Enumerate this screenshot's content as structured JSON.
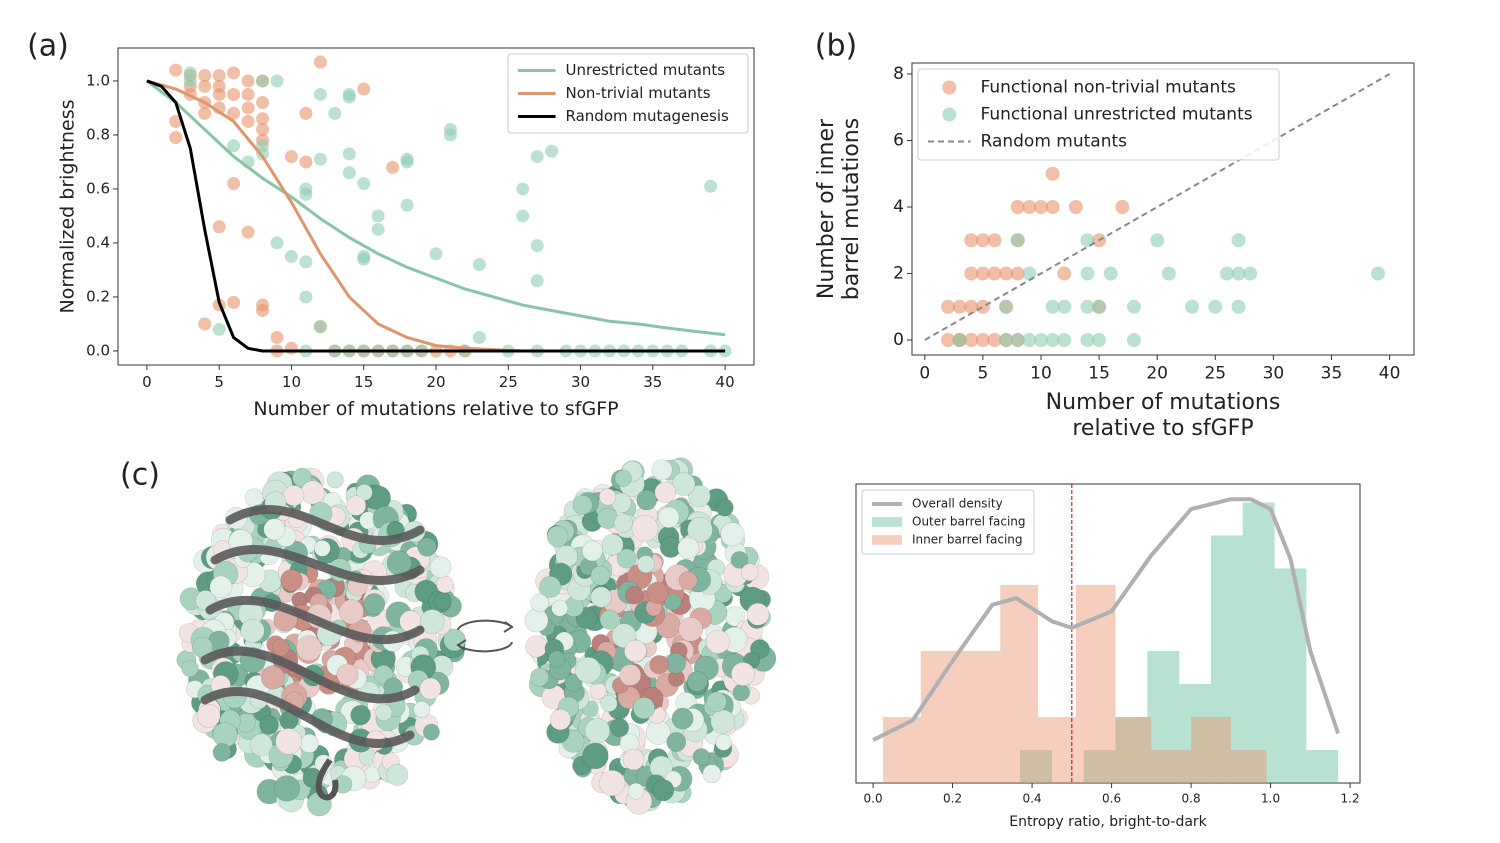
{
  "panel_labels": [
    "(a)",
    "(b)",
    "(c)"
  ],
  "chart_data": [
    {
      "type": "scatter",
      "xlabel": "Number of mutations relative to sfGFP",
      "ylabel": "Normalized brightness",
      "xlim": [
        -2,
        42
      ],
      "ylim": [
        -0.052,
        1.122
      ],
      "xticks": [
        0,
        5,
        10,
        15,
        20,
        25,
        30,
        35,
        40
      ],
      "yticks": [
        {
          "value": 0,
          "label": "0.0"
        },
        0.2,
        0.4,
        0.6,
        0.8,
        {
          "value": 1,
          "label": "1.0"
        }
      ],
      "legend": "upper right",
      "points": [
        {
          "color": "#e8936d",
          "x": [
            2,
            2,
            2,
            3,
            3,
            3,
            4,
            4,
            4,
            4,
            5,
            5,
            5,
            5,
            5,
            4,
            6,
            6,
            6,
            6,
            6,
            5,
            7,
            7,
            7,
            7,
            7,
            8,
            8,
            8,
            8,
            8,
            8,
            8,
            9,
            9,
            10,
            10,
            11,
            11,
            12,
            12,
            13,
            15,
            15,
            17,
            17,
            18,
            19,
            20,
            21,
            22,
            14,
            16
          ],
          "y": [
            1.04,
            0.85,
            0.79,
            1.02,
            0.98,
            0.95,
            1.02,
            0.98,
            0.92,
            0.88,
            1.02,
            0.98,
            0.95,
            0.9,
            0.46,
            0.1,
            1.03,
            0.95,
            0.88,
            0.62,
            0.18,
            0.17,
            1.0,
            0.95,
            0.9,
            0.85,
            0.44,
            1.0,
            0.92,
            0.86,
            0.82,
            0.78,
            0.17,
            0.15,
            0.0,
            0.05,
            0.01,
            0.72,
            0.7,
            0.88,
            1.07,
            0.09,
            0.0,
            0.97,
            0.0,
            0.68,
            0.0,
            0.0,
            0.0,
            0.0,
            0.0,
            0.0,
            0.0,
            0.0
          ]
        },
        {
          "color": "#8fcdb2",
          "x": [
            3,
            3,
            5,
            6,
            7,
            8,
            8,
            8,
            9,
            9,
            10,
            11,
            11,
            11,
            11,
            11,
            12,
            12,
            12,
            13,
            13,
            14,
            14,
            14,
            14,
            14,
            15,
            15,
            15,
            15,
            16,
            16,
            16,
            17,
            18,
            18,
            18,
            18,
            19,
            20,
            21,
            21,
            22,
            23,
            23,
            25,
            26,
            26,
            27,
            27,
            27,
            27,
            28,
            29,
            30,
            31,
            32,
            33,
            34,
            35,
            36,
            37,
            39,
            39,
            40
          ],
          "y": [
            1.03,
            1.0,
            0.08,
            0.76,
            0.7,
            1.0,
            0.76,
            0.73,
            1.0,
            0.4,
            0.35,
            0.33,
            0.6,
            0.58,
            0.2,
            0.0,
            0.95,
            0.71,
            0.09,
            0.88,
            0.0,
            0.95,
            0.94,
            0.73,
            0.66,
            0.0,
            0.62,
            0.35,
            0.34,
            0.0,
            0.5,
            0.45,
            0.0,
            0.0,
            0.71,
            0.7,
            0.54,
            0.0,
            0.0,
            0.36,
            0.82,
            0.8,
            0.0,
            0.32,
            0.05,
            0.0,
            0.6,
            0.5,
            0.72,
            0.39,
            0.26,
            0.0,
            0.74,
            0.0,
            0.0,
            0.0,
            0.0,
            0.0,
            0.0,
            0.0,
            0.0,
            0.0,
            0.61,
            0.0,
            0.0
          ]
        }
      ],
      "series": [
        {
          "name": "Unrestricted mutants",
          "color": "#87c4a8",
          "x": [
            0,
            2,
            4,
            6,
            8,
            10,
            12,
            14,
            16,
            18,
            20,
            22,
            24,
            26,
            28,
            30,
            32,
            34,
            36,
            38,
            40
          ],
          "y": [
            1.0,
            0.92,
            0.82,
            0.72,
            0.64,
            0.57,
            0.49,
            0.42,
            0.36,
            0.31,
            0.27,
            0.23,
            0.2,
            0.17,
            0.15,
            0.13,
            0.11,
            0.1,
            0.085,
            0.072,
            0.06
          ]
        },
        {
          "name": "Non-trivial mutants",
          "color": "#e0956c",
          "x": [
            0,
            2,
            4,
            6,
            8,
            10,
            12,
            14,
            16,
            18,
            20,
            22,
            24,
            26,
            30,
            35,
            40
          ],
          "y": [
            1.0,
            0.97,
            0.92,
            0.85,
            0.72,
            0.55,
            0.36,
            0.2,
            0.1,
            0.05,
            0.02,
            0.01,
            0.005,
            0,
            0,
            0,
            0
          ]
        },
        {
          "name": "Random mutagenesis",
          "color": "#000000",
          "x": [
            0,
            1,
            2,
            3,
            4,
            5,
            6,
            7,
            8,
            10,
            20,
            30,
            40
          ],
          "y": [
            1.0,
            0.98,
            0.92,
            0.75,
            0.45,
            0.18,
            0.05,
            0.01,
            0,
            0,
            0,
            0,
            0
          ]
        }
      ]
    },
    {
      "type": "scatter",
      "xlabel": [
        "Number of mutations",
        "relative to sfGFP"
      ],
      "ylabel": [
        "Number of inner",
        "barrel mutations"
      ],
      "xlim": [
        -1.1,
        42.1
      ],
      "ylim": [
        -0.45,
        8.33
      ],
      "xticks": [
        0,
        5,
        10,
        15,
        20,
        25,
        30,
        35,
        40
      ],
      "yticks": [
        0,
        2,
        4,
        6,
        8
      ],
      "legend": "upper left",
      "points": [
        {
          "name": "Functional non-trivial mutants",
          "color": "#e8936d",
          "x": [
            2,
            2,
            3,
            3,
            4,
            4,
            4,
            5,
            5,
            5,
            5,
            6,
            6,
            6,
            7,
            7,
            8,
            8,
            9,
            8,
            10,
            11,
            11,
            12,
            13,
            15,
            15,
            17,
            7,
            8,
            3,
            4
          ],
          "y": [
            0,
            1,
            1,
            0,
            1,
            2,
            3,
            0,
            1,
            2,
            3,
            0,
            2,
            3,
            2,
            1,
            2,
            4,
            4,
            3,
            4,
            4,
            5,
            2,
            4,
            3,
            1,
            4,
            0,
            0,
            0,
            0
          ]
        },
        {
          "name": "Functional unrestricted mutants",
          "color": "#8fcdb2",
          "x": [
            3,
            7,
            7,
            8,
            8,
            9,
            9,
            10,
            11,
            11,
            12,
            12,
            14,
            14,
            14,
            15,
            15,
            16,
            18,
            18,
            20,
            21,
            23,
            25,
            26,
            27,
            27,
            27,
            28,
            39,
            14
          ],
          "y": [
            0,
            0,
            1,
            3,
            0,
            0,
            2,
            0,
            0,
            1,
            1,
            0,
            1,
            3,
            2,
            1,
            0,
            2,
            1,
            0,
            3,
            2,
            1,
            1,
            2,
            3,
            2,
            1,
            2,
            2,
            0
          ]
        }
      ],
      "series": [
        {
          "name": "Random mutants",
          "color": "#888888",
          "dash": true,
          "x": [
            0,
            40
          ],
          "y": [
            0,
            8
          ]
        }
      ]
    },
    {
      "type": "histogram",
      "xlabel": "Entropy ratio, bright-to-dark",
      "xlim": [
        -0.043,
        1.225
      ],
      "ylim": [
        0,
        9.06
      ],
      "xticks": [
        {
          "value": 0,
          "label": "0.0"
        },
        0.2,
        0.4,
        0.6,
        0.8,
        {
          "value": 1,
          "label": "1.0"
        },
        1.2
      ],
      "legend": "upper left",
      "density": {
        "name": "Overall density",
        "color": "#b0b0b0",
        "x": [
          0,
          0.1,
          0.2,
          0.3,
          0.36,
          0.45,
          0.5,
          0.6,
          0.7,
          0.8,
          0.9,
          0.95,
          1.0,
          1.05,
          1.1,
          1.17
        ],
        "y": [
          1.3,
          1.9,
          3.7,
          5.4,
          5.6,
          4.9,
          4.7,
          5.2,
          6.9,
          8.3,
          8.6,
          8.6,
          8.3,
          6.8,
          4.0,
          1.5
        ]
      },
      "series": [
        {
          "name": "Outer barrel facing",
          "color": "#5fbf98",
          "bins": [
            0.37,
            0.45,
            0.53,
            0.61,
            0.69,
            0.77,
            0.85,
            0.93,
            1.01,
            1.09,
            1.17
          ],
          "counts": [
            1,
            0,
            1,
            2,
            4,
            3,
            7.5,
            8.5,
            6.5,
            1
          ]
        },
        {
          "name": "Inner barrel facing",
          "color": "#e9926c",
          "bins": [
            0.025,
            0.12,
            0.22,
            0.32,
            0.415,
            0.51,
            0.61,
            0.7,
            0.8,
            0.9,
            0.99
          ],
          "counts": [
            2,
            4,
            4,
            6,
            2,
            6,
            2,
            1,
            2,
            1
          ]
        }
      ],
      "vline": {
        "x": 0.5,
        "color": "#c00000"
      }
    }
  ]
}
